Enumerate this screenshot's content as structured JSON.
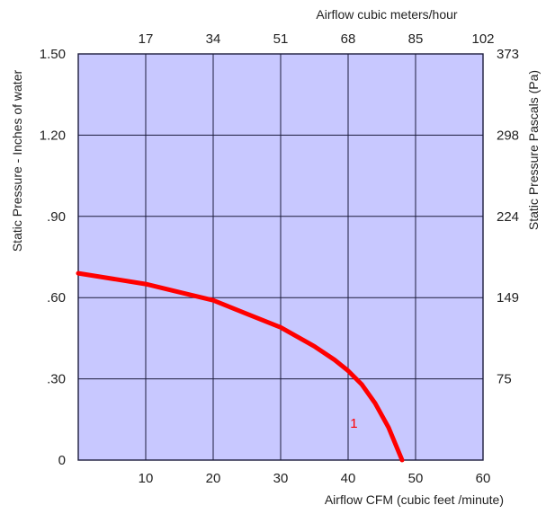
{
  "chart_data": {
    "type": "line",
    "x_label": "Airflow  CFM (cubic feet /minute)",
    "x_ticks": [
      10,
      20,
      30,
      40,
      50,
      60
    ],
    "x_lim": [
      0,
      60
    ],
    "x2_label": "Airflow cubic meters/hour",
    "x2_ticks": [
      "17",
      "34",
      "51",
      "68",
      "85",
      "102"
    ],
    "y_label": "Static Pressure - Inches of water",
    "y_ticks": [
      "0",
      ".30",
      ".60",
      ".90",
      "1.20",
      "1.50"
    ],
    "y_tick_values": [
      0,
      0.3,
      0.6,
      0.9,
      1.2,
      1.5
    ],
    "y_lim": [
      0,
      1.5
    ],
    "y2_label": "Static Pressure Pascals (Pa)",
    "y2_ticks": [
      "75",
      "149",
      "224",
      "298",
      "373"
    ],
    "grid": true,
    "series": [
      {
        "name": "1",
        "x": [
          0,
          5,
          10,
          15,
          20,
          25,
          30,
          35,
          38,
          40,
          42,
          44,
          46,
          47,
          48
        ],
        "y": [
          0.69,
          0.67,
          0.65,
          0.62,
          0.59,
          0.54,
          0.49,
          0.42,
          0.37,
          0.33,
          0.28,
          0.21,
          0.12,
          0.06,
          0
        ]
      }
    ],
    "colors": {
      "plot_bg": "#c8c8ff",
      "curve": "#ff0000",
      "grid": "#1c1c3c"
    }
  }
}
